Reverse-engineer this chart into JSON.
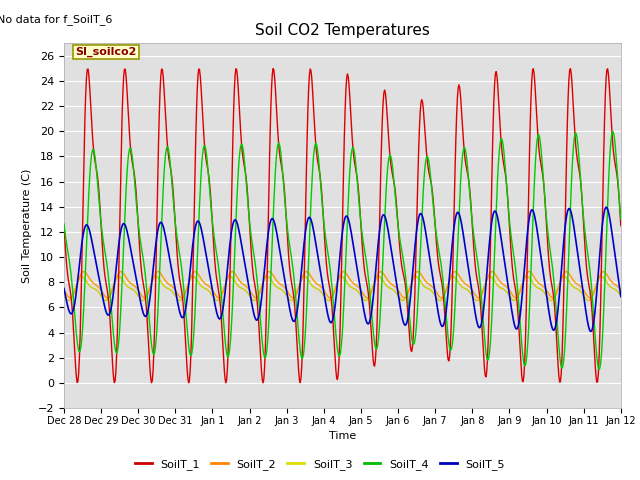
{
  "title": "Soil CO2 Temperatures",
  "ylabel": "Soil Temperature (C)",
  "xlabel": "Time",
  "no_data_text": "No data for f_SoilT_6",
  "site_label": "SI_soilco2",
  "ylim": [
    -2,
    27
  ],
  "yticks": [
    -2,
    0,
    2,
    4,
    6,
    8,
    10,
    12,
    14,
    16,
    18,
    20,
    22,
    24,
    26
  ],
  "xtick_labels": [
    "Dec 28",
    "Dec 29",
    "Dec 30",
    "Dec 31",
    "Jan 1",
    "Jan 2",
    "Jan 3",
    "Jan 4",
    "Jan 5",
    "Jan 6",
    "Jan 7",
    "Jan 8",
    "Jan 9",
    "Jan 10",
    "Jan 11",
    "Jan 12"
  ],
  "colors": {
    "SoilT_1": "#dd0000",
    "SoilT_2": "#ff9900",
    "SoilT_3": "#cccc00",
    "SoilT_4": "#00cc00",
    "SoilT_5": "#0000cc"
  },
  "legend_colors": {
    "SoilT_1": "#cc0000",
    "SoilT_2": "#ff8800",
    "SoilT_3": "#dddd00",
    "SoilT_4": "#00bb00",
    "SoilT_5": "#0000bb"
  },
  "bg_color": "#e0e0e0",
  "fig_bg": "#ffffff"
}
